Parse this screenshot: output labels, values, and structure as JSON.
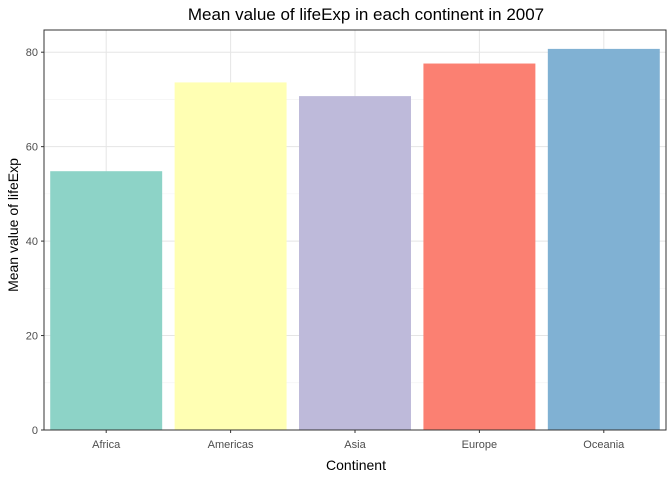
{
  "chart_data": {
    "type": "bar",
    "title": "Mean value of lifeExp in each continent in 2007",
    "xlabel": "Continent",
    "ylabel": "Mean value of lifeExp",
    "categories": [
      "Africa",
      "Americas",
      "Asia",
      "Europe",
      "Oceania"
    ],
    "values": [
      54.8,
      73.6,
      70.7,
      77.6,
      80.7
    ],
    "colors": [
      "#8dd3c7",
      "#ffffb3",
      "#bebada",
      "#fb8072",
      "#80b1d3"
    ],
    "ylim": [
      0,
      84.7
    ],
    "yticks": [
      0,
      20,
      40,
      60,
      80
    ],
    "grid": true,
    "legend": "none"
  }
}
